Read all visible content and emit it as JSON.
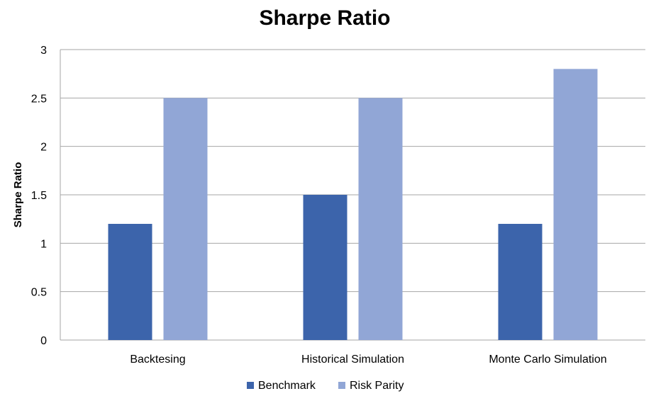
{
  "chart_data": {
    "type": "bar",
    "title": "Sharpe Ratio",
    "xlabel": "",
    "ylabel": "Sharpe Ratio",
    "categories": [
      "Backtesing",
      "Historical Simulation",
      "Monte Carlo Simulation"
    ],
    "series": [
      {
        "name": "Benchmark",
        "values": [
          1.2,
          1.5,
          1.2
        ],
        "color": "#3c64ab"
      },
      {
        "name": "Risk Parity",
        "values": [
          2.5,
          2.5,
          2.8
        ],
        "color": "#91a6d6"
      }
    ],
    "ylim": [
      0,
      3
    ],
    "yticks": [
      "0",
      "0.5",
      "1",
      "1.5",
      "2",
      "2.5",
      "3"
    ],
    "grid": true,
    "legend": "bottom"
  }
}
